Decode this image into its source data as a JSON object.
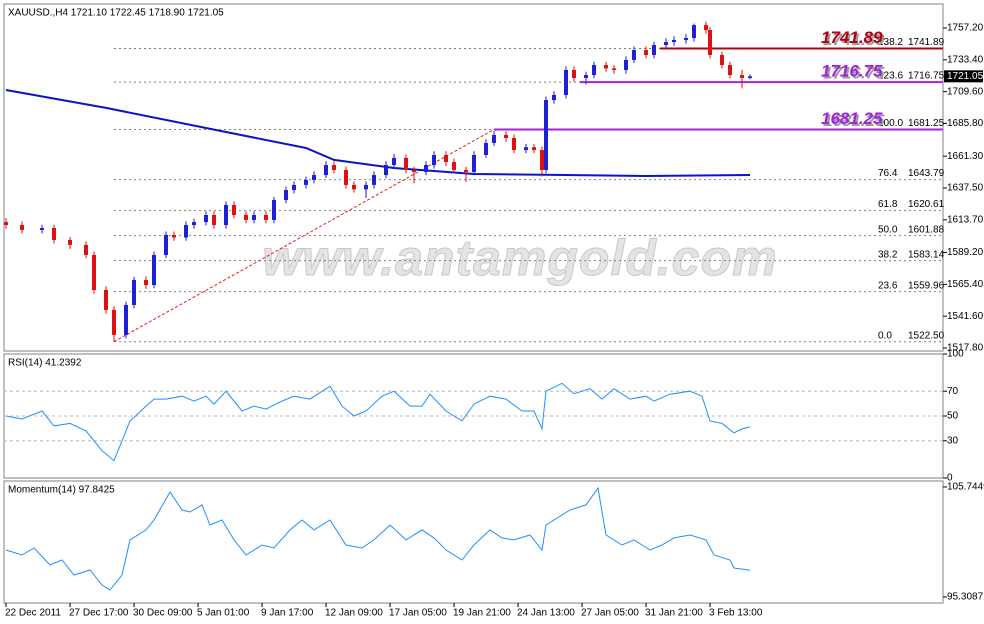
{
  "chart_data": [
    {
      "type": "candlestick",
      "title": "XAUUSD.,H4  1721.10 1722.45 1718.90 1721.05",
      "watermark": "www.antamgold.com",
      "xlim": [
        -0.5,
        234.25
      ],
      "ylim": [
        1515.56,
        1775.16
      ],
      "yticks": [
        {
          "value": 1757.2,
          "label": "1757.20"
        },
        {
          "value": 1733.4,
          "label": "1733.40"
        },
        {
          "value": 1709.6,
          "label": "1709.60"
        },
        {
          "value": 1685.8,
          "label": "1685.80"
        },
        {
          "value": 1661.3,
          "label": "1661.30"
        },
        {
          "value": 1637.5,
          "label": "1637.50"
        },
        {
          "value": 1613.7,
          "label": "1613.70"
        },
        {
          "value": 1589.2,
          "label": "1589.20"
        },
        {
          "value": 1565.4,
          "label": "1565.40"
        },
        {
          "value": 1541.6,
          "label": "1541.60"
        },
        {
          "value": 1517.8,
          "label": "1517.80"
        }
      ],
      "up_color": "#1f1fd6",
      "down_color": "#e01010",
      "x": [
        0,
        4,
        9,
        12,
        16,
        20,
        22,
        25,
        27,
        30,
        32,
        35,
        37,
        40,
        42,
        45,
        47,
        50,
        52,
        55,
        57,
        60,
        62,
        65,
        67,
        70,
        72,
        75,
        77,
        80,
        82,
        85,
        87,
        90,
        92,
        95,
        97,
        100,
        102,
        105,
        107,
        110,
        112,
        115,
        117,
        120,
        122,
        125,
        127,
        130,
        132,
        134,
        135,
        137,
        140,
        142,
        145,
        147,
        150,
        152,
        155,
        157,
        160,
        162,
        165,
        167,
        170,
        172,
        175,
        176,
        179,
        181,
        184,
        186
      ],
      "open": [
        1612.0,
        1609.8,
        1606.1,
        1607.6,
        1598.6,
        1594.9,
        1587.4,
        1561.2,
        1546.3,
        1527.6,
        1550.0,
        1568.7,
        1564.9,
        1587.4,
        1602.4,
        1600.5,
        1609.8,
        1612.0,
        1617.3,
        1609.8,
        1624.8,
        1617.3,
        1613.6,
        1617.3,
        1613.6,
        1628.5,
        1636.0,
        1639.8,
        1643.5,
        1647.2,
        1654.7,
        1651.0,
        1639.8,
        1636.5,
        1639.8,
        1647.2,
        1654.7,
        1660.0,
        1651.0,
        1649.5,
        1654.7,
        1662.2,
        1656.9,
        1651.0,
        1649.5,
        1662.2,
        1671.2,
        1677.2,
        1674.9,
        1665.9,
        1668.0,
        1665.9,
        1651.0,
        1703.3,
        1707.1,
        1725.8,
        1719.8,
        1722.0,
        1729.5,
        1727.0,
        1725.8,
        1733.3,
        1740.7,
        1737.0,
        1744.5,
        1746.7,
        1748.2,
        1749.7,
        1759.4,
        1755.7,
        1737.0,
        1729.5,
        1722.0,
        1719.8
      ],
      "high": [
        1615.0,
        1612.5,
        1610.0,
        1610.0,
        1601.0,
        1597.5,
        1590.0,
        1564.0,
        1549.0,
        1552.5,
        1571.0,
        1571.5,
        1590.0,
        1605.0,
        1605.0,
        1612.5,
        1614.5,
        1620.0,
        1620.0,
        1627.5,
        1627.5,
        1620.0,
        1620.0,
        1620.0,
        1631.0,
        1638.5,
        1642.5,
        1646.0,
        1650.0,
        1657.5,
        1657.5,
        1653.5,
        1642.5,
        1642.5,
        1650.0,
        1657.5,
        1663.0,
        1662.5,
        1653.5,
        1657.5,
        1665.0,
        1665.0,
        1659.5,
        1653.5,
        1665.0,
        1674.0,
        1680.0,
        1680.0,
        1677.5,
        1670.5,
        1670.5,
        1668.5,
        1706.0,
        1710.0,
        1728.5,
        1728.5,
        1724.5,
        1732.0,
        1732.0,
        1729.5,
        1736.0,
        1743.5,
        1743.5,
        1747.0,
        1749.5,
        1751.0,
        1752.5,
        1760.5,
        1762.0,
        1758.0,
        1739.5,
        1732.0,
        1726.0,
        1722.45
      ],
      "low": [
        1607.0,
        1603.5,
        1603.5,
        1596.0,
        1592.0,
        1585.0,
        1558.5,
        1543.5,
        1522.5,
        1525.0,
        1547.5,
        1562.0,
        1562.5,
        1585.0,
        1598.0,
        1598.0,
        1607.0,
        1609.5,
        1607.0,
        1607.0,
        1615.0,
        1611.0,
        1611.0,
        1611.0,
        1611.0,
        1626.0,
        1633.5,
        1637.0,
        1641.0,
        1645.0,
        1648.5,
        1637.0,
        1634.0,
        1630.0,
        1637.0,
        1645.0,
        1652.0,
        1648.5,
        1641.0,
        1647.0,
        1652.0,
        1654.0,
        1648.5,
        1642.0,
        1647.0,
        1660.0,
        1669.0,
        1672.0,
        1663.5,
        1663.5,
        1663.5,
        1646.0,
        1648.5,
        1700.5,
        1704.5,
        1717.0,
        1715.0,
        1719.5,
        1724.5,
        1723.0,
        1723.0,
        1731.0,
        1734.5,
        1734.5,
        1742.0,
        1744.0,
        1745.5,
        1747.0,
        1753.0,
        1734.5,
        1727.0,
        1719.5,
        1712.0,
        1718.9
      ],
      "close": [
        1609.8,
        1606.1,
        1607.6,
        1598.6,
        1594.9,
        1587.4,
        1561.2,
        1546.3,
        1527.6,
        1550.0,
        1568.7,
        1564.9,
        1587.4,
        1602.4,
        1600.5,
        1609.8,
        1612.0,
        1617.3,
        1609.8,
        1624.8,
        1617.3,
        1613.6,
        1617.3,
        1613.6,
        1628.5,
        1636.0,
        1639.8,
        1643.5,
        1647.2,
        1654.7,
        1651.0,
        1639.8,
        1636.5,
        1639.8,
        1647.2,
        1654.7,
        1660.0,
        1651.0,
        1649.5,
        1654.7,
        1662.2,
        1656.9,
        1651.0,
        1649.5,
        1662.2,
        1671.2,
        1677.2,
        1674.9,
        1665.9,
        1668.0,
        1665.9,
        1651.0,
        1703.3,
        1707.1,
        1725.8,
        1719.8,
        1722.0,
        1729.5,
        1727.0,
        1725.8,
        1733.3,
        1740.7,
        1737.0,
        1744.5,
        1746.7,
        1748.2,
        1749.7,
        1759.4,
        1755.7,
        1737.0,
        1729.5,
        1722.0,
        1719.8,
        1721.05
      ],
      "moving_average": {
        "color": "#0a14c8",
        "x": [
          0,
          25,
          50,
          75,
          82,
          97,
          117,
          140,
          160,
          186
        ],
        "values": [
          1710.8,
          1697.4,
          1682.4,
          1667.4,
          1658.5,
          1652.5,
          1648.0,
          1647.2,
          1646.5,
          1647.2
        ]
      },
      "fib_trendline": {
        "color": "#e02020",
        "x": [
          27,
          122
        ],
        "values": [
          1522.5,
          1681.25
        ]
      },
      "fib_start": 27,
      "fib_levels": [
        {
          "ratio": 138.2,
          "price": 1741.89
        },
        {
          "ratio": 123.6,
          "price": 1716.75
        },
        {
          "ratio": {
            "value": 100,
            "label": "100.0"
          },
          "price": 1681.25
        },
        {
          "ratio": 76.4,
          "price": 1643.79
        },
        {
          "ratio": 61.8,
          "price": 1620.61
        },
        {
          "ratio": {
            "value": 50,
            "label": "50.0"
          },
          "price": 1601.88
        },
        {
          "ratio": 38.2,
          "price": 1583.14
        },
        {
          "ratio": 23.6,
          "price": 1559.96
        },
        {
          "ratio": {
            "value": 0,
            "label": "0.0"
          },
          "price": {
            "value": 1522.5,
            "label": "1522.50"
          }
        }
      ],
      "levels": [
        {
          "value": 1741.89,
          "color": "#b00010",
          "x_start": 163.5
        },
        {
          "value": 1716.75,
          "color": "#a020e0",
          "x_start": 143.5
        },
        {
          "value": 1681.25,
          "color": "#a020e0",
          "x_start": 122
        }
      ]
    },
    {
      "type": "line",
      "title": "RSI(14) 41.2392",
      "color": "#1e90ff",
      "grid": true,
      "xlim": [
        -0.5,
        234.25
      ],
      "ylim": [
        0,
        100
      ],
      "yticks": [
        100,
        70,
        50,
        30,
        0
      ],
      "x": [
        0,
        4,
        9,
        12,
        16,
        20,
        24,
        27,
        29,
        31,
        35,
        37,
        40,
        44,
        47,
        50,
        52,
        55,
        59,
        62,
        65,
        69,
        72,
        76,
        81,
        84,
        87,
        90,
        94,
        97,
        101,
        104,
        106,
        110,
        114,
        117,
        121,
        125,
        129,
        132,
        134,
        135,
        139,
        142,
        146,
        149,
        152,
        156,
        160,
        162,
        166,
        171,
        174,
        176,
        179,
        182,
        184,
        186
      ],
      "values": [
        50,
        47.6,
        54,
        42,
        44,
        38,
        22,
        14,
        30,
        46,
        58,
        63.6,
        63.6,
        66,
        62,
        66,
        59.6,
        70,
        54,
        58,
        55.6,
        62,
        66,
        63.6,
        74,
        58,
        50,
        54,
        66,
        70,
        58,
        58,
        67.6,
        54,
        46,
        59.6,
        66,
        63.6,
        54,
        54,
        39.6,
        70,
        76.4,
        68,
        72,
        63.6,
        72,
        63.6,
        66,
        62,
        67.6,
        70,
        66,
        46,
        44,
        36.4,
        39.6,
        41.2392
      ]
    },
    {
      "type": "line",
      "title": "Momentum(14) 97.8425",
      "color": "#1e90ff",
      "grid": false,
      "xlim": [
        -0.5,
        234.25
      ],
      "ylim": [
        94.74,
        106.31
      ],
      "yticks": [
        105.7449,
        95.3087
      ],
      "xticks": [
        {
          "value": 0,
          "label": "22 Dec 2011"
        },
        {
          "value": 16,
          "label": "27 Dec 17:00"
        },
        {
          "value": 32,
          "label": "30 Dec 09:00"
        },
        {
          "value": 48,
          "label": "5 Jan 01:00"
        },
        {
          "value": 64,
          "label": "9 Jan 17:00"
        },
        {
          "value": 80,
          "label": "12 Jan 09:00"
        },
        {
          "value": 96,
          "label": "17 Jan 05:00"
        },
        {
          "value": 112,
          "label": "19 Jan 21:00"
        },
        {
          "value": 128,
          "label": "24 Jan 13:00"
        },
        {
          "value": 144,
          "label": "27 Jan 05:00"
        },
        {
          "value": 160,
          "label": "31 Jan 21:00"
        },
        {
          "value": 176,
          "label": "3 Feb 13:00"
        }
      ],
      "x": [
        0,
        4,
        7,
        11,
        14,
        17,
        21,
        24,
        26,
        29,
        31,
        35,
        37,
        41,
        44,
        46,
        49,
        51,
        54,
        57,
        60,
        64,
        67,
        71,
        74,
        77,
        81,
        85,
        89,
        92,
        96,
        100,
        104,
        107,
        110,
        114,
        117,
        121,
        124,
        127,
        131,
        134,
        135,
        137,
        141,
        145,
        148,
        150,
        154,
        157,
        161,
        164,
        167,
        171,
        175,
        177,
        181,
        182,
        186
      ],
      "values": [
        99.77,
        99.29,
        99.96,
        98.35,
        98.82,
        97.4,
        97.87,
        96.45,
        95.97,
        97.4,
        100.72,
        101.67,
        102.61,
        105.27,
        103.56,
        103.37,
        104.04,
        102.14,
        102.61,
        100.72,
        99.29,
        100.24,
        99.96,
        101.67,
        102.61,
        101.67,
        102.61,
        100.24,
        99.96,
        100.72,
        102.14,
        100.72,
        101.67,
        100.91,
        99.77,
        98.82,
        100.24,
        101.67,
        100.91,
        100.72,
        101.19,
        99.77,
        102.14,
        102.61,
        103.56,
        104.04,
        105.65,
        101.19,
        100.24,
        100.72,
        99.77,
        100.24,
        100.91,
        101.19,
        100.72,
        99.29,
        98.82,
        98.06,
        97.8425
      ]
    }
  ]
}
